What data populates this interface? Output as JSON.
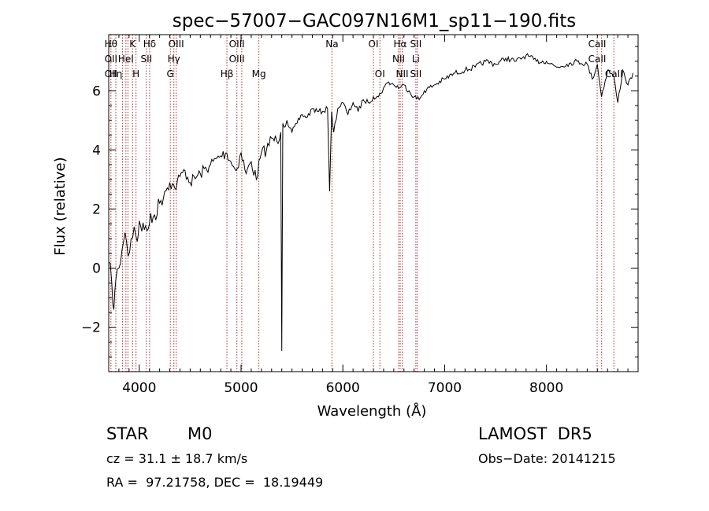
{
  "chart_data": {
    "type": "line",
    "title": "spec−57007−GAC097N16M1_sp11−190.fits",
    "xlabel": "Wavelength (Å)",
    "ylabel": "Flux (relative)",
    "xlim": [
      3700,
      8900
    ],
    "ylim": [
      -3.5,
      7.9
    ],
    "x_ticks": [
      4000,
      5000,
      6000,
      7000,
      8000
    ],
    "y_ticks": [
      -2,
      0,
      2,
      4,
      6
    ],
    "y_tick_labels": [
      "−2",
      "0",
      "2",
      "4",
      "6"
    ],
    "line_color": "#000000",
    "marker_color": "#b03030",
    "series": [
      {
        "x": [
          3700,
          3730,
          3750,
          3770,
          3800,
          3830,
          3860,
          3890,
          3920,
          3950,
          3980,
          4000,
          4050,
          4100,
          4150,
          4200,
          4250,
          4300,
          4350,
          4400,
          4450,
          4500,
          4600,
          4700,
          4800,
          4860,
          4900,
          4950,
          5000,
          5050,
          5100,
          5150,
          5200,
          5250,
          5300,
          5350,
          5390,
          5400,
          5410,
          5450,
          5500,
          5550,
          5600,
          5650,
          5700,
          5750,
          5800,
          5850,
          5870,
          5890,
          5910,
          5950,
          6000,
          6050,
          6100,
          6150,
          6200,
          6250,
          6300,
          6350,
          6400,
          6450,
          6500,
          6560,
          6600,
          6650,
          6700,
          6750,
          6800,
          6900,
          7000,
          7100,
          7200,
          7300,
          7400,
          7500,
          7600,
          7700,
          7800,
          7900,
          8000,
          8100,
          8200,
          8300,
          8400,
          8450,
          8500,
          8540,
          8600,
          8660,
          8700,
          8750,
          8800,
          8850
        ],
        "y": [
          0.2,
          -0.5,
          -1.4,
          -0.4,
          0.0,
          0.6,
          1.2,
          0.4,
          1.0,
          1.4,
          0.9,
          1.6,
          1.3,
          1.5,
          1.8,
          2.2,
          2.6,
          2.9,
          2.7,
          3.1,
          3.3,
          2.9,
          3.2,
          3.5,
          3.8,
          3.9,
          3.6,
          3.3,
          3.9,
          3.2,
          3.6,
          3.0,
          3.9,
          4.0,
          4.4,
          4.3,
          4.6,
          -2.8,
          4.9,
          5.0,
          4.6,
          4.9,
          5.2,
          5.1,
          5.4,
          5.3,
          5.3,
          5.4,
          2.6,
          5.3,
          4.6,
          5.4,
          5.6,
          5.2,
          5.6,
          5.3,
          5.7,
          5.6,
          5.8,
          5.8,
          6.1,
          6.3,
          6.2,
          6.1,
          6.2,
          6.0,
          5.8,
          5.7,
          6.0,
          6.2,
          6.4,
          6.6,
          6.7,
          6.8,
          7.0,
          6.9,
          7.1,
          7.0,
          7.2,
          7.0,
          7.0,
          6.8,
          6.9,
          7.0,
          6.9,
          6.4,
          6.9,
          5.8,
          6.7,
          6.5,
          5.6,
          6.7,
          6.2,
          6.6
        ]
      }
    ],
    "lines": [
      {
        "x": 3722,
        "labels": [
          "Hθ",
          "OII",
          "OII"
        ]
      },
      {
        "x": 3770,
        "labels": [
          "",
          "",
          "Hη"
        ]
      },
      {
        "x": 3835,
        "labels": [
          "",
          "",
          ""
        ]
      },
      {
        "x": 3869,
        "labels": [
          "",
          "HeI",
          ""
        ]
      },
      {
        "x": 3889,
        "labels": [
          "",
          "",
          ""
        ]
      },
      {
        "x": 3934,
        "labels": [
          "K",
          "",
          ""
        ]
      },
      {
        "x": 3968,
        "labels": [
          "",
          "",
          "H"
        ]
      },
      {
        "x": 4070,
        "labels": [
          "",
          "SII",
          ""
        ]
      },
      {
        "x": 4102,
        "labels": [
          "Hδ",
          "",
          ""
        ]
      },
      {
        "x": 4305,
        "labels": [
          "",
          "",
          "G"
        ]
      },
      {
        "x": 4340,
        "labels": [
          "",
          "Hγ",
          ""
        ]
      },
      {
        "x": 4363,
        "labels": [
          "OIII",
          "",
          ""
        ]
      },
      {
        "x": 4861,
        "labels": [
          "",
          "",
          "Hβ"
        ]
      },
      {
        "x": 4959,
        "labels": [
          "OIII",
          "OIII",
          ""
        ]
      },
      {
        "x": 5007,
        "labels": [
          "",
          "",
          ""
        ]
      },
      {
        "x": 5175,
        "labels": [
          "",
          "",
          "Mg"
        ]
      },
      {
        "x": 5893,
        "labels": [
          "Na",
          "",
          ""
        ]
      },
      {
        "x": 6300,
        "labels": [
          "OI",
          "",
          ""
        ]
      },
      {
        "x": 6364,
        "labels": [
          "",
          "",
          "OI"
        ]
      },
      {
        "x": 6548,
        "labels": [
          "",
          "NII",
          ""
        ]
      },
      {
        "x": 6563,
        "labels": [
          "Hα",
          "",
          ""
        ]
      },
      {
        "x": 6583,
        "labels": [
          "",
          "",
          "NII"
        ]
      },
      {
        "x": 6717,
        "labels": [
          "SII",
          "Li",
          "SII"
        ]
      },
      {
        "x": 6731,
        "labels": [
          "",
          "",
          ""
        ]
      },
      {
        "x": 8498,
        "labels": [
          "CaII",
          "CaII",
          ""
        ]
      },
      {
        "x": 8542,
        "labels": [
          "",
          "",
          ""
        ]
      },
      {
        "x": 8662,
        "labels": [
          "",
          "",
          "CaII"
        ]
      }
    ]
  },
  "info": {
    "object_type": "STAR",
    "subclass": "M0",
    "survey": "LAMOST  DR5",
    "redshift": "cz = 31.1 ± 18.7 km/s",
    "obs_date": "Obs−Date: 20141215",
    "coords": "RA =  97.21758, DEC =  18.19449"
  }
}
